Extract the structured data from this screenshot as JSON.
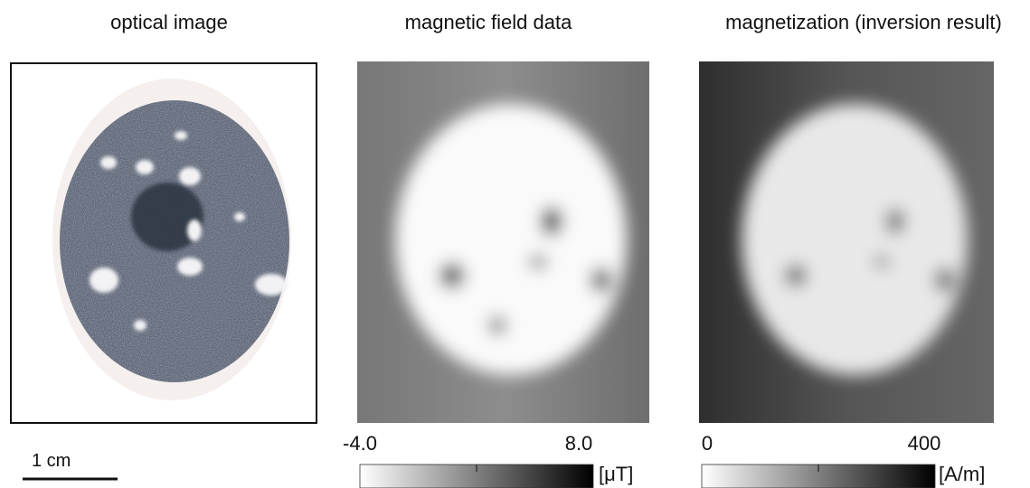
{
  "panels": [
    {
      "title": "optical image",
      "scale_bar": "1 cm"
    },
    {
      "title": "magnetic field data",
      "colorbar": {
        "min": "-4.0",
        "max": "8.0",
        "unit": "[μT]"
      }
    },
    {
      "title": "magnetization (inversion result)",
      "colorbar": {
        "min": "0",
        "max": "400",
        "unit": "[A/m]"
      }
    }
  ]
}
